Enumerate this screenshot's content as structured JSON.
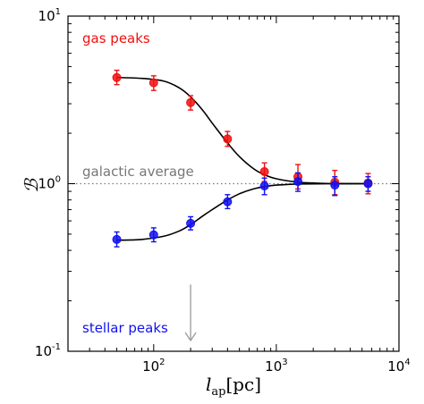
{
  "chart_data": {
    "type": "scatter",
    "xscale": "log",
    "yscale": "log",
    "xlim": [
      20,
      10000
    ],
    "ylim": [
      0.1,
      10
    ],
    "xlabel": {
      "base": "l",
      "sub": "ap",
      "unit": "[pc]"
    },
    "ylabel": "ℬ",
    "xticks": [
      {
        "value": 100,
        "base": "10",
        "exp": "2"
      },
      {
        "value": 1000,
        "base": "10",
        "exp": "3"
      },
      {
        "value": 10000,
        "base": "10",
        "exp": "4"
      }
    ],
    "yticks": [
      {
        "value": 0.1,
        "label": "10",
        "exp": "-1"
      },
      {
        "value": 1,
        "label": "10",
        "exp": "0"
      },
      {
        "value": 10,
        "label": "10",
        "exp": "1"
      }
    ],
    "reference_line": {
      "y": 1.0,
      "label": "galactic average",
      "color": "#777777",
      "style": "dotted"
    },
    "series": [
      {
        "name": "gas peaks",
        "color": "#ee1111",
        "points": [
          {
            "x": 50,
            "y": 4.3,
            "lo": 3.9,
            "hi": 4.75
          },
          {
            "x": 100,
            "y": 4.0,
            "lo": 3.6,
            "hi": 4.4
          },
          {
            "x": 200,
            "y": 3.05,
            "lo": 2.75,
            "hi": 3.35
          },
          {
            "x": 400,
            "y": 1.85,
            "lo": 1.67,
            "hi": 2.05
          },
          {
            "x": 800,
            "y": 1.18,
            "lo": 1.03,
            "hi": 1.33
          },
          {
            "x": 1500,
            "y": 1.1,
            "lo": 0.93,
            "hi": 1.3
          },
          {
            "x": 3000,
            "y": 1.02,
            "lo": 0.86,
            "hi": 1.2
          },
          {
            "x": 5600,
            "y": 1.01,
            "lo": 0.87,
            "hi": 1.15
          }
        ],
        "fit": [
          [
            50,
            4.3
          ],
          [
            80,
            4.25
          ],
          [
            120,
            4.1
          ],
          [
            160,
            3.75
          ],
          [
            200,
            3.3
          ],
          [
            250,
            2.75
          ],
          [
            300,
            2.3
          ],
          [
            400,
            1.75
          ],
          [
            500,
            1.45
          ],
          [
            650,
            1.23
          ],
          [
            800,
            1.13
          ],
          [
            1000,
            1.07
          ],
          [
            1500,
            1.02
          ],
          [
            2000,
            1.01
          ],
          [
            3000,
            1.0
          ],
          [
            5600,
            1.0
          ]
        ]
      },
      {
        "name": "stellar peaks",
        "color": "#1111ee",
        "points": [
          {
            "x": 50,
            "y": 0.465,
            "lo": 0.42,
            "hi": 0.515
          },
          {
            "x": 100,
            "y": 0.495,
            "lo": 0.45,
            "hi": 0.545
          },
          {
            "x": 200,
            "y": 0.58,
            "lo": 0.53,
            "hi": 0.635
          },
          {
            "x": 400,
            "y": 0.78,
            "lo": 0.71,
            "hi": 0.86
          },
          {
            "x": 800,
            "y": 0.97,
            "lo": 0.86,
            "hi": 1.08
          },
          {
            "x": 1500,
            "y": 1.03,
            "lo": 0.9,
            "hi": 1.16
          },
          {
            "x": 3000,
            "y": 0.98,
            "lo": 0.85,
            "hi": 1.1
          },
          {
            "x": 5600,
            "y": 1.0,
            "lo": 0.9,
            "hi": 1.1
          }
        ],
        "fit": [
          [
            50,
            0.46
          ],
          [
            80,
            0.465
          ],
          [
            120,
            0.485
          ],
          [
            160,
            0.52
          ],
          [
            200,
            0.57
          ],
          [
            250,
            0.64
          ],
          [
            300,
            0.7
          ],
          [
            400,
            0.8
          ],
          [
            500,
            0.87
          ],
          [
            650,
            0.93
          ],
          [
            800,
            0.96
          ],
          [
            1000,
            0.98
          ],
          [
            1500,
            0.995
          ],
          [
            3000,
            1.0
          ],
          [
            5600,
            1.0
          ]
        ]
      }
    ],
    "annotations": [
      {
        "text": "gas peaks",
        "color": "#ee1111"
      },
      {
        "text": "galactic average",
        "color": "#777777"
      },
      {
        "text": "stellar peaks",
        "color": "#1111ee"
      }
    ],
    "arrow": {
      "x": 200,
      "from_y": 0.25,
      "to_y": 0.1,
      "color": "#999999"
    }
  }
}
